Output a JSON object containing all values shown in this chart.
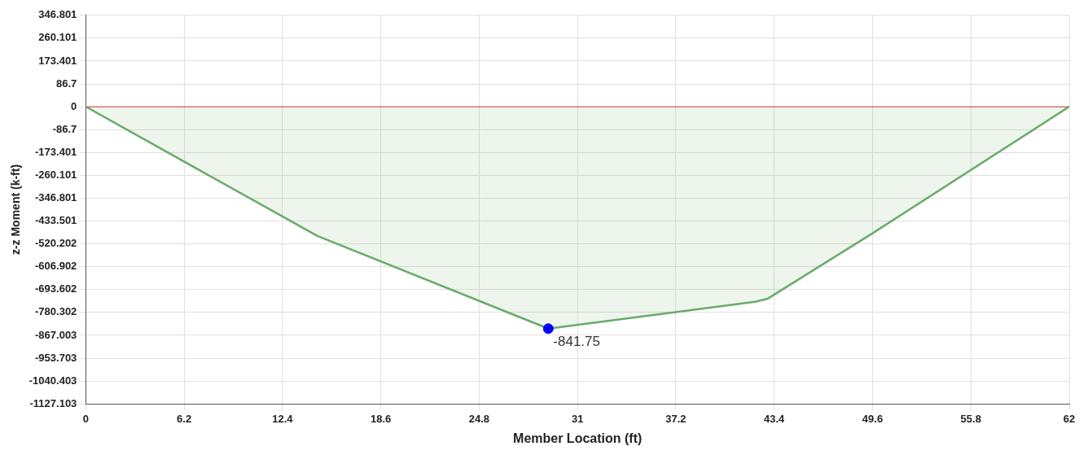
{
  "chart_data": {
    "type": "area",
    "xlabel": "Member Location (ft)",
    "ylabel": "z-z Moment (k-ft)",
    "xlim": [
      0,
      62
    ],
    "xticks": [
      0,
      6.2,
      12.4,
      18.6,
      24.8,
      31,
      37.2,
      43.4,
      49.6,
      55.8,
      62
    ],
    "ylim": [
      -1127.103,
      346.801
    ],
    "yticks": [
      346.801,
      260.101,
      173.401,
      86.7,
      0,
      -86.7,
      -173.401,
      -260.101,
      -346.801,
      -433.501,
      -520.202,
      -606.902,
      -693.602,
      -780.302,
      -867.003,
      -953.703,
      -1040.403,
      -1127.103
    ],
    "grid": true,
    "legend": false,
    "marker": "none",
    "line_style": "solid",
    "series": [
      {
        "color": "#6aaa6a",
        "x": [
          0,
          14.6,
          29.16,
          42.2,
          43.0,
          49.5,
          62
        ],
        "values": [
          0,
          -490,
          -841.75,
          -740,
          -728,
          -484,
          0
        ]
      },
      {
        "type": "scatter",
        "color": "#0000ff",
        "marker": "circle",
        "x": [
          29.16
        ],
        "values": [
          -841.75
        ],
        "value_labels": [
          "-841.75"
        ]
      }
    ],
    "ref_lines": [
      {
        "axis": "y",
        "value": 0,
        "label": null,
        "color": "#e07070"
      }
    ]
  }
}
